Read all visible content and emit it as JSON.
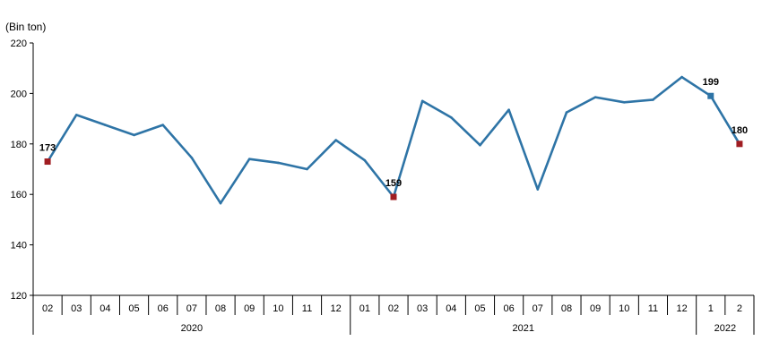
{
  "chart_data": {
    "type": "line",
    "ylabel": "(Bin ton)",
    "ylim": [
      120,
      220
    ],
    "yticks": [
      120,
      140,
      160,
      180,
      200,
      220
    ],
    "grid": false,
    "categories": [
      "02",
      "03",
      "04",
      "05",
      "06",
      "07",
      "08",
      "09",
      "10",
      "11",
      "12",
      "01",
      "02",
      "03",
      "04",
      "05",
      "06",
      "07",
      "08",
      "09",
      "10",
      "11",
      "12",
      "1",
      "2"
    ],
    "years": [
      {
        "label": "2020",
        "start": 0,
        "end": 10
      },
      {
        "label": "2021",
        "start": 11,
        "end": 22
      },
      {
        "label": "2022",
        "start": 23,
        "end": 24
      }
    ],
    "series": [
      {
        "values": [
          173,
          191.5,
          187.5,
          183.5,
          187.5,
          174.5,
          156.5,
          174,
          172.5,
          170,
          181.5,
          173.5,
          159,
          197,
          190.5,
          179.5,
          193.5,
          162,
          192.5,
          198.5,
          196.5,
          197.5,
          206.5,
          199,
          180
        ],
        "color": "#2e74a6"
      }
    ],
    "markers": [
      {
        "index": 0,
        "label": "173",
        "color": "#a01d22"
      },
      {
        "index": 12,
        "label": "159",
        "color": "#a01d22"
      },
      {
        "index": 23,
        "label": "199",
        "color": "#2e74a6"
      },
      {
        "index": 24,
        "label": "180",
        "color": "#a01d22"
      }
    ]
  }
}
